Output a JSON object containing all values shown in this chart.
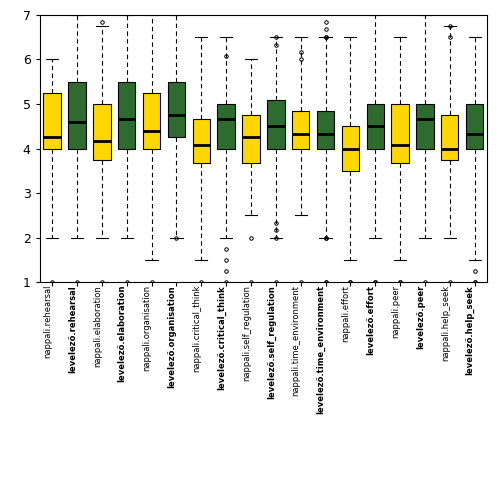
{
  "boxes": [
    {
      "label": "nappali.rehearsal",
      "color": "#FFD700",
      "q1": 4.0,
      "med": 4.25,
      "q3": 5.25,
      "whislo": 2.0,
      "whishi": 6.0,
      "fliers_low": [
        1.0
      ],
      "fliers_high": []
    },
    {
      "label": "levelező.rehearsal",
      "color": "#2E6B2E",
      "q1": 4.0,
      "med": 4.6,
      "q3": 5.5,
      "whislo": 2.0,
      "whishi": 7.0,
      "fliers_low": [
        1.0
      ],
      "fliers_high": []
    },
    {
      "label": "nappali.elaboration",
      "color": "#FFD700",
      "q1": 3.75,
      "med": 4.17,
      "q3": 5.0,
      "whislo": 2.0,
      "whishi": 6.75,
      "fliers_low": [
        1.0
      ],
      "fliers_high": [
        6.83
      ]
    },
    {
      "label": "levelező.elaboration",
      "color": "#2E6B2E",
      "q1": 4.0,
      "med": 4.67,
      "q3": 5.5,
      "whislo": 2.0,
      "whishi": 7.0,
      "fliers_low": [
        1.0
      ],
      "fliers_high": []
    },
    {
      "label": "nappali.organisation",
      "color": "#FFD700",
      "q1": 4.0,
      "med": 4.4,
      "q3": 5.25,
      "whislo": 1.5,
      "whishi": 7.0,
      "fliers_low": [
        1.0
      ],
      "fliers_high": []
    },
    {
      "label": "levelező.organisation",
      "color": "#2E6B2E",
      "q1": 4.25,
      "med": 4.75,
      "q3": 5.5,
      "whislo": 2.0,
      "whishi": 7.0,
      "fliers_low": [
        2.0
      ],
      "fliers_high": []
    },
    {
      "label": "nappali.critical_think",
      "color": "#FFD700",
      "q1": 3.67,
      "med": 4.08,
      "q3": 4.67,
      "whislo": 1.5,
      "whishi": 6.5,
      "fliers_low": [
        1.0
      ],
      "fliers_high": []
    },
    {
      "label": "levelező.critical_think",
      "color": "#2E6B2E",
      "q1": 4.0,
      "med": 4.67,
      "q3": 5.0,
      "whislo": 2.0,
      "whishi": 6.5,
      "fliers_low": [
        1.75,
        1.5,
        1.25,
        1.0
      ],
      "fliers_high": [
        6.08
      ]
    },
    {
      "label": "nappali.self_regulation",
      "color": "#FFD700",
      "q1": 3.67,
      "med": 4.25,
      "q3": 4.75,
      "whislo": 2.5,
      "whishi": 6.0,
      "fliers_low": [
        2.0,
        1.0
      ],
      "fliers_high": []
    },
    {
      "label": "levelező.self_regulation",
      "color": "#2E6B2E",
      "q1": 4.0,
      "med": 4.5,
      "q3": 5.08,
      "whislo": 2.0,
      "whishi": 6.5,
      "fliers_low": [
        2.33,
        2.17,
        2.0,
        1.0
      ],
      "fliers_high": [
        6.5,
        6.33
      ]
    },
    {
      "label": "nappali.time_environment",
      "color": "#FFD700",
      "q1": 4.0,
      "med": 4.33,
      "q3": 4.83,
      "whislo": 2.5,
      "whishi": 6.5,
      "fliers_low": [
        1.0
      ],
      "fliers_high": [
        6.0,
        6.17
      ]
    },
    {
      "label": "levelező.time_environment",
      "color": "#2E6B2E",
      "q1": 4.0,
      "med": 4.33,
      "q3": 4.83,
      "whislo": 2.0,
      "whishi": 6.5,
      "fliers_low": [
        2.0,
        2.0,
        1.0,
        1.0
      ],
      "fliers_high": [
        6.5,
        6.5,
        6.67,
        6.83
      ]
    },
    {
      "label": "nappali.effort",
      "color": "#FFD700",
      "q1": 3.5,
      "med": 4.0,
      "q3": 4.5,
      "whislo": 1.5,
      "whishi": 6.5,
      "fliers_low": [
        1.0,
        1.0
      ],
      "fliers_high": []
    },
    {
      "label": "levelező.effort",
      "color": "#2E6B2E",
      "q1": 4.0,
      "med": 4.5,
      "q3": 5.0,
      "whislo": 2.0,
      "whishi": 7.0,
      "fliers_low": [
        1.0,
        1.0
      ],
      "fliers_high": []
    },
    {
      "label": "nappali.peer",
      "color": "#FFD700",
      "q1": 3.67,
      "med": 4.08,
      "q3": 5.0,
      "whislo": 1.5,
      "whishi": 6.5,
      "fliers_low": [
        1.0,
        1.0
      ],
      "fliers_high": []
    },
    {
      "label": "levelező.peer",
      "color": "#2E6B2E",
      "q1": 4.0,
      "med": 4.67,
      "q3": 5.0,
      "whislo": 2.0,
      "whishi": 7.0,
      "fliers_low": [
        1.0
      ],
      "fliers_high": []
    },
    {
      "label": "nappali.help_seek",
      "color": "#FFD700",
      "q1": 3.75,
      "med": 4.0,
      "q3": 4.75,
      "whislo": 2.0,
      "whishi": 6.75,
      "fliers_low": [
        1.0
      ],
      "fliers_high": [
        6.75,
        6.5
      ]
    },
    {
      "label": "levelező.help_seek",
      "color": "#2E6B2E",
      "q1": 4.0,
      "med": 4.33,
      "q3": 5.0,
      "whislo": 1.5,
      "whishi": 6.5,
      "fliers_low": [
        1.25,
        1.0,
        1.0
      ],
      "fliers_high": []
    }
  ],
  "ylim": [
    1,
    7
  ],
  "yticks": [
    1,
    2,
    3,
    4,
    5,
    6,
    7
  ],
  "box_width": 0.7,
  "background_color": "#ffffff",
  "median_color": "#000000",
  "whisker_color": "#000000",
  "flier_marker": "o",
  "flier_size": 2.5,
  "figsize": [
    4.97,
    4.87
  ],
  "dpi": 100
}
